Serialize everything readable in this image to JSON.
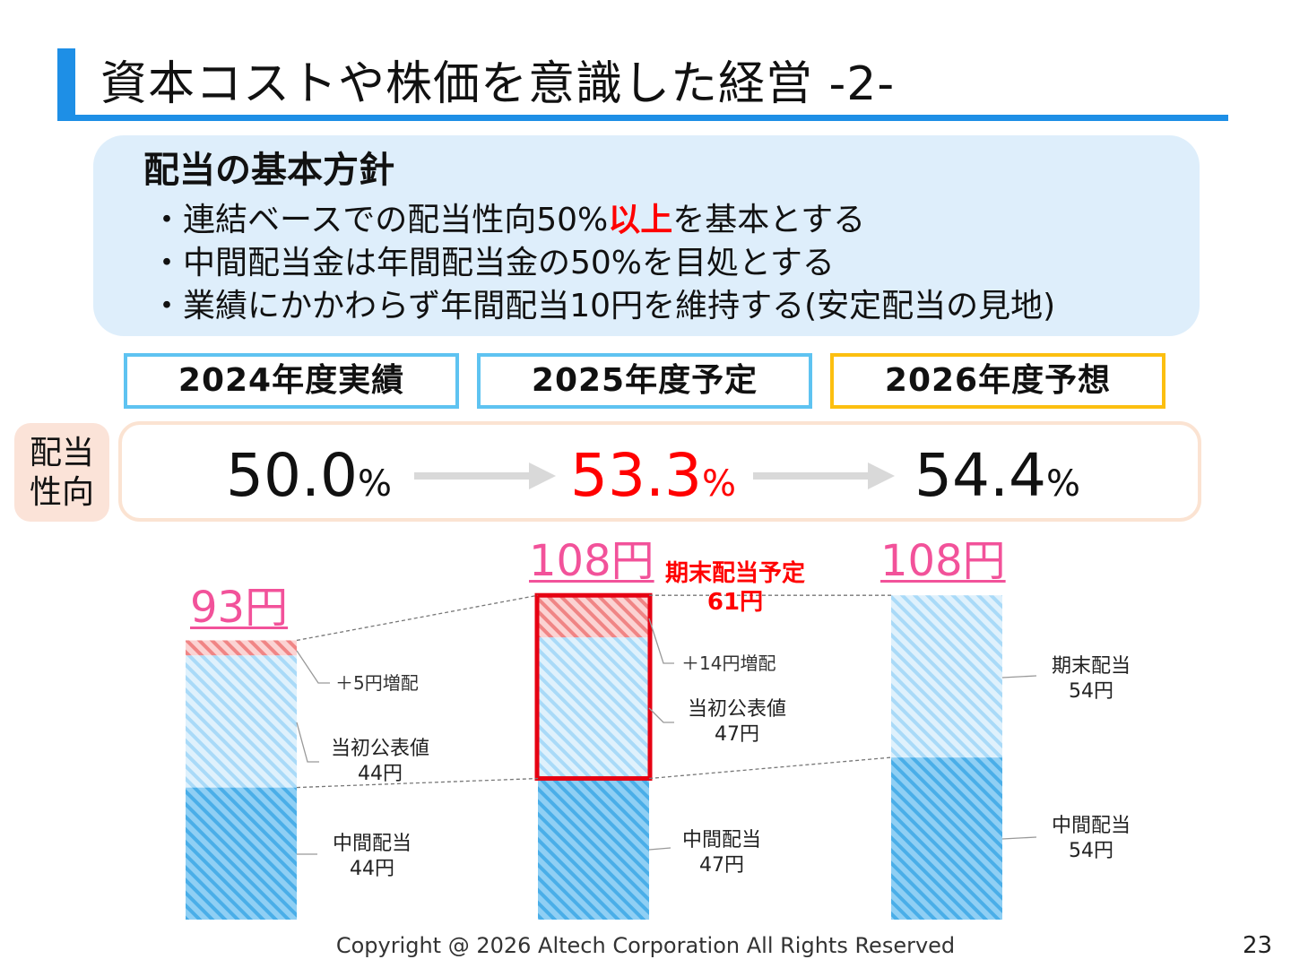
{
  "header": {
    "title": "資本コストや株価を意識した経営 ‐2‐"
  },
  "policy": {
    "heading": "配当の基本方針",
    "bullet1_pre": "・連結ベースでの配当性向50%",
    "bullet1_highlight": "以上",
    "bullet1_post": "を基本とする",
    "bullet2": "・中間配当金は年間配当金の50%を目処とする",
    "bullet3": "・業績にかかわらず年間配当10円を維持する(安定配当の見地)"
  },
  "years": {
    "y2024": "2024年度実績",
    "y2025": "2025年度予定",
    "y2026": "2026年度予想"
  },
  "payout": {
    "label_line1": "配当",
    "label_line2": "性向",
    "r2024": "50.0",
    "r2025": "53.3",
    "r2026": "54.4",
    "pct": "%"
  },
  "dividends": {
    "total_2024": "93円",
    "total_2025": "108円",
    "total_2026": "108円",
    "planned_final_line1": "期末配当予定",
    "planned_final_line2": "61円",
    "increase_2024": "＋5円増配",
    "initial_2024_line1": "当初公表値",
    "initial_2024_line2": "44円",
    "interim_2024_line1": "中間配当",
    "interim_2024_line2": "44円",
    "increase_2025": "＋14円増配",
    "initial_2025_line1": "当初公表値",
    "initial_2025_line2": "47円",
    "interim_2025_line1": "中間配当",
    "interim_2025_line2": "47円",
    "final_2026_line1": "期末配当",
    "final_2026_line2": "54円",
    "interim_2026_line1": "中間配当",
    "interim_2026_line2": "54円"
  },
  "chart_data": {
    "type": "bar",
    "stacked": true,
    "categories": [
      "2024",
      "2025",
      "2026"
    ],
    "series": [
      {
        "name": "中間配当",
        "values": [
          44,
          47,
          54
        ]
      },
      {
        "name": "当初公表値",
        "values": [
          44,
          47,
          0
        ]
      },
      {
        "name": "増配",
        "values": [
          5,
          14,
          0
        ]
      },
      {
        "name": "期末配当",
        "values": [
          0,
          0,
          54
        ]
      }
    ],
    "totals": [
      93,
      108,
      108
    ],
    "unit": "円",
    "colors": {
      "interim": "#4fb3ec",
      "initial": "#a9daf8",
      "increase": "#f28a8a",
      "highlight_border": "#e60012"
    }
  },
  "footer": {
    "copyright": "Copyright @ 2026 Altech Corporation All Rights Reserved",
    "page": "23"
  }
}
